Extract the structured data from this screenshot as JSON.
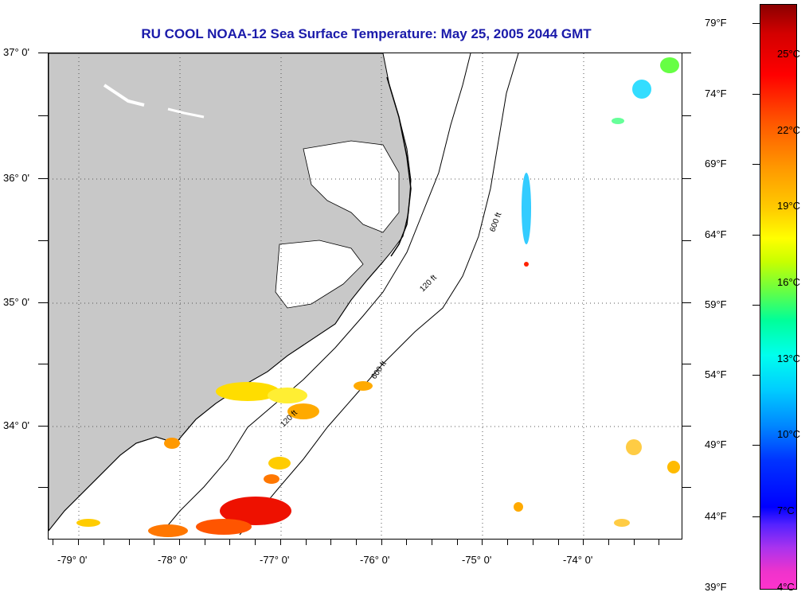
{
  "title": "RU COOL  NOAA-12  Sea Surface Temperature:  May 25, 2005 2044 GMT",
  "latitude_labels": [
    "37° 0'",
    "36° 0'",
    "35° 0'",
    "34° 0'"
  ],
  "longitude_labels": [
    "-79° 0'",
    "-78° 0'",
    "-77° 0'",
    "-76° 0'",
    "-75° 0'",
    "-74° 0'"
  ],
  "contour_labels": [
    "120 ft",
    "600 ft"
  ],
  "colorbar": {
    "fahrenheit": [
      "79°F",
      "74°F",
      "69°F",
      "64°F",
      "59°F",
      "54°F",
      "49°F",
      "44°F",
      "39°F"
    ],
    "celsius": [
      "25°C",
      "22°C",
      "19°C",
      "16°C",
      "13°C",
      "10°C",
      "7°C",
      "4°C"
    ]
  },
  "colors": {
    "land": "#c8c8c8",
    "ocean": "#ffffff",
    "title": "#1a1aaa",
    "grid": "#555555"
  }
}
